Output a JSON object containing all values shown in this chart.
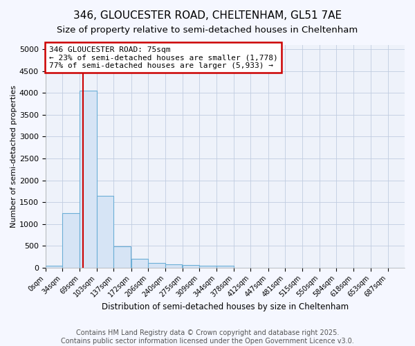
{
  "title": "346, GLOUCESTER ROAD, CHELTENHAM, GL51 7AE",
  "subtitle": "Size of property relative to semi-detached houses in Cheltenham",
  "xlabel": "Distribution of semi-detached houses by size in Cheltenham",
  "ylabel": "Number of semi-detached properties",
  "bin_labels": [
    "0sqm",
    "34sqm",
    "69sqm",
    "103sqm",
    "137sqm",
    "172sqm",
    "206sqm",
    "240sqm",
    "275sqm",
    "309sqm",
    "344sqm",
    "378sqm",
    "412sqm",
    "447sqm",
    "481sqm",
    "515sqm",
    "550sqm",
    "584sqm",
    "618sqm",
    "653sqm",
    "687sqm"
  ],
  "bin_edges": [
    0,
    34,
    69,
    103,
    137,
    172,
    206,
    240,
    275,
    309,
    344,
    378,
    412,
    447,
    481,
    515,
    550,
    584,
    618,
    653,
    687
  ],
  "bar_heights": [
    50,
    1250,
    4050,
    1650,
    480,
    200,
    110,
    70,
    60,
    50,
    50,
    0,
    0,
    0,
    0,
    0,
    0,
    0,
    0,
    0,
    0
  ],
  "bar_color": "#d6e4f5",
  "bar_edge_color": "#6baed6",
  "plot_bg_color": "#eef2fa",
  "fig_bg_color": "#f5f7ff",
  "vline_x": 75,
  "vline_color": "#cc0000",
  "annotation_line1": "346 GLOUCESTER ROAD: 75sqm",
  "annotation_line2": "← 23% of semi-detached houses are smaller (1,778)",
  "annotation_line3": "77% of semi-detached houses are larger (5,933) →",
  "annotation_box_color": "#cc0000",
  "ylim": [
    0,
    5100
  ],
  "yticks": [
    0,
    500,
    1000,
    1500,
    2000,
    2500,
    3000,
    3500,
    4000,
    4500,
    5000
  ],
  "footer_line1": "Contains HM Land Registry data © Crown copyright and database right 2025.",
  "footer_line2": "Contains public sector information licensed under the Open Government Licence v3.0.",
  "title_fontsize": 11,
  "subtitle_fontsize": 9.5,
  "footer_fontsize": 7,
  "bin_width": 34,
  "xlim_max": 721
}
